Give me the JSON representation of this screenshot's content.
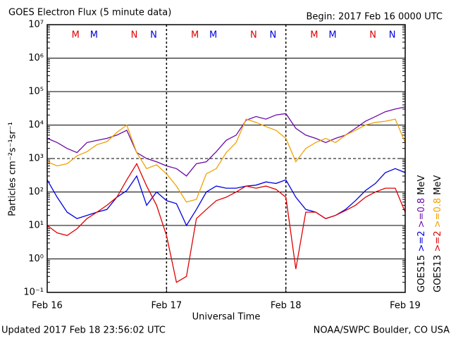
{
  "chart_data": {
    "type": "line",
    "title": "GOES Electron Flux (5 minute data)",
    "subtitle": "Begin: 2017 Feb 16 0000 UTC",
    "y_label": "Particles cm⁻²s⁻¹sr⁻¹",
    "x_label": "Universal Time",
    "footer_left": "Updated 2017 Feb 18 23:56:02 UTC",
    "footer_right": "NOAA/SWPC Boulder, CO USA",
    "legend_unit": "MeV",
    "log_y": true,
    "grid": true,
    "threshold": 1000,
    "xlim": [
      0,
      72
    ],
    "xticks": [
      {
        "value": 0,
        "label": "Feb 16"
      },
      {
        "value": 24,
        "label": "Feb 17"
      },
      {
        "value": 48,
        "label": "Feb 18"
      },
      {
        "value": 72,
        "label": "Feb 19"
      }
    ],
    "ylim": [
      0.1,
      10000000
    ],
    "yticks": [
      {
        "value": 0.1,
        "label": "10⁻¹"
      },
      {
        "value": 1,
        "label": "10⁰"
      },
      {
        "value": 10,
        "label": "10¹"
      },
      {
        "value": 100,
        "label": "10²"
      },
      {
        "value": 1000,
        "label": "10³"
      },
      {
        "value": 10000,
        "label": "10⁴"
      },
      {
        "value": 100000,
        "label": "10⁵"
      },
      {
        "value": 1000000,
        "label": "10⁶"
      },
      {
        "value": 10000000,
        "label": "10⁷"
      }
    ],
    "annotations": [
      {
        "text": "M",
        "x": 5.7,
        "color": "#e00000"
      },
      {
        "text": "M",
        "x": 9.4,
        "color": "#0000e0"
      },
      {
        "text": "N",
        "x": 17.5,
        "color": "#e00000"
      },
      {
        "text": "N",
        "x": 21.4,
        "color": "#0000e0"
      },
      {
        "text": "M",
        "x": 29.7,
        "color": "#e00000"
      },
      {
        "text": "M",
        "x": 33.4,
        "color": "#0000e0"
      },
      {
        "text": "N",
        "x": 41.5,
        "color": "#e00000"
      },
      {
        "text": "N",
        "x": 45.4,
        "color": "#0000e0"
      },
      {
        "text": "M",
        "x": 53.7,
        "color": "#e00000"
      },
      {
        "text": "M",
        "x": 57.4,
        "color": "#0000e0"
      },
      {
        "text": "N",
        "x": 65.5,
        "color": "#e00000"
      },
      {
        "text": "N",
        "x": 69.4,
        "color": "#0000e0"
      }
    ],
    "x": [
      0,
      2,
      4,
      6,
      8,
      10,
      12,
      14,
      16,
      18,
      20,
      22,
      24,
      26,
      28,
      30,
      32,
      34,
      36,
      38,
      40,
      42,
      44,
      46,
      48,
      50,
      52,
      54,
      56,
      58,
      60,
      62,
      64,
      66,
      68,
      70,
      72
    ],
    "series": [
      {
        "name": ">=2",
        "satellite": "GOES15",
        "color": "#0000e0",
        "values": [
          230,
          70,
          25,
          16,
          20,
          25,
          30,
          70,
          110,
          300,
          40,
          100,
          55,
          45,
          10,
          30,
          100,
          150,
          130,
          130,
          150,
          160,
          200,
          180,
          230,
          70,
          30,
          25,
          16,
          20,
          30,
          55,
          110,
          180,
          380,
          500,
          380
        ]
      },
      {
        "name": ">=0.8",
        "satellite": "GOES15",
        "color": "#6a0aa8",
        "values": [
          4000,
          3000,
          2000,
          1500,
          3000,
          3500,
          4000,
          5000,
          7000,
          1500,
          1000,
          800,
          600,
          500,
          300,
          700,
          800,
          1600,
          3500,
          5000,
          14000,
          18000,
          15000,
          20000,
          22000,
          8000,
          5000,
          4000,
          3000,
          4000,
          5000,
          8000,
          13000,
          18000,
          25000,
          30000,
          35000
        ]
      },
      {
        "name": ">=2",
        "satellite": "GOES13",
        "color": "#e00000",
        "values": [
          10,
          6,
          5,
          8,
          16,
          25,
          40,
          70,
          230,
          700,
          150,
          40,
          5,
          0.2,
          0.3,
          16,
          30,
          55,
          70,
          100,
          150,
          130,
          150,
          120,
          70,
          0.5,
          25,
          25,
          16,
          20,
          28,
          40,
          70,
          100,
          130,
          130,
          25
        ]
      },
      {
        "name": ">=0.8",
        "satellite": "GOES13",
        "color": "#f0a000",
        "values": [
          800,
          600,
          700,
          1200,
          1600,
          2600,
          3200,
          6000,
          10000,
          1500,
          500,
          650,
          350,
          150,
          50,
          60,
          350,
          500,
          1500,
          3000,
          15000,
          12000,
          9000,
          7000,
          4000,
          800,
          2000,
          3000,
          4000,
          3000,
          5000,
          7000,
          10000,
          12000,
          13000,
          15000,
          3000
        ]
      }
    ]
  }
}
